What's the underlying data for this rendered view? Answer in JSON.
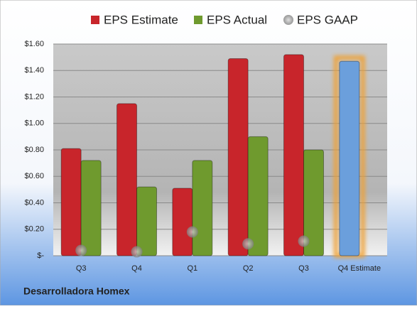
{
  "chart_data": {
    "type": "bar",
    "caption": "Desarrolladora Homex",
    "categories": [
      "Q3",
      "Q4",
      "Q1",
      "Q2",
      "Q3",
      "Q4 Estimate"
    ],
    "series": [
      {
        "name": "EPS Estimate",
        "color": "#c8252b",
        "point_colors": [
          "#c8252b",
          "#c8252b",
          "#c8252b",
          "#c8252b",
          "#c8252b",
          "#6b9fdc"
        ],
        "values": [
          0.81,
          1.15,
          0.51,
          1.49,
          1.52,
          1.47
        ]
      },
      {
        "name": "EPS Actual",
        "color": "#6f9a2e",
        "values": [
          0.72,
          0.52,
          0.72,
          0.9,
          0.8,
          null
        ]
      },
      {
        "name": "EPS GAAP",
        "color": "#9a9a9a",
        "marker": "circle",
        "values": [
          0.04,
          0.03,
          0.18,
          0.09,
          0.11,
          null
        ]
      }
    ],
    "ylim": [
      0,
      1.6
    ],
    "yticks": [
      {
        "value": 0,
        "label": "$-"
      },
      {
        "value": 0.2,
        "label": "$0.20"
      },
      {
        "value": 0.4,
        "label": "$0.40"
      },
      {
        "value": 0.6,
        "label": "$0.60"
      },
      {
        "value": 0.8,
        "label": "$0.80"
      },
      {
        "value": 1.0,
        "label": "$1.00"
      },
      {
        "value": 1.2,
        "label": "$1.20"
      },
      {
        "value": 1.4,
        "label": "$1.40"
      },
      {
        "value": 1.6,
        "label": "$1.60"
      }
    ],
    "grid": true,
    "legend": "top"
  }
}
